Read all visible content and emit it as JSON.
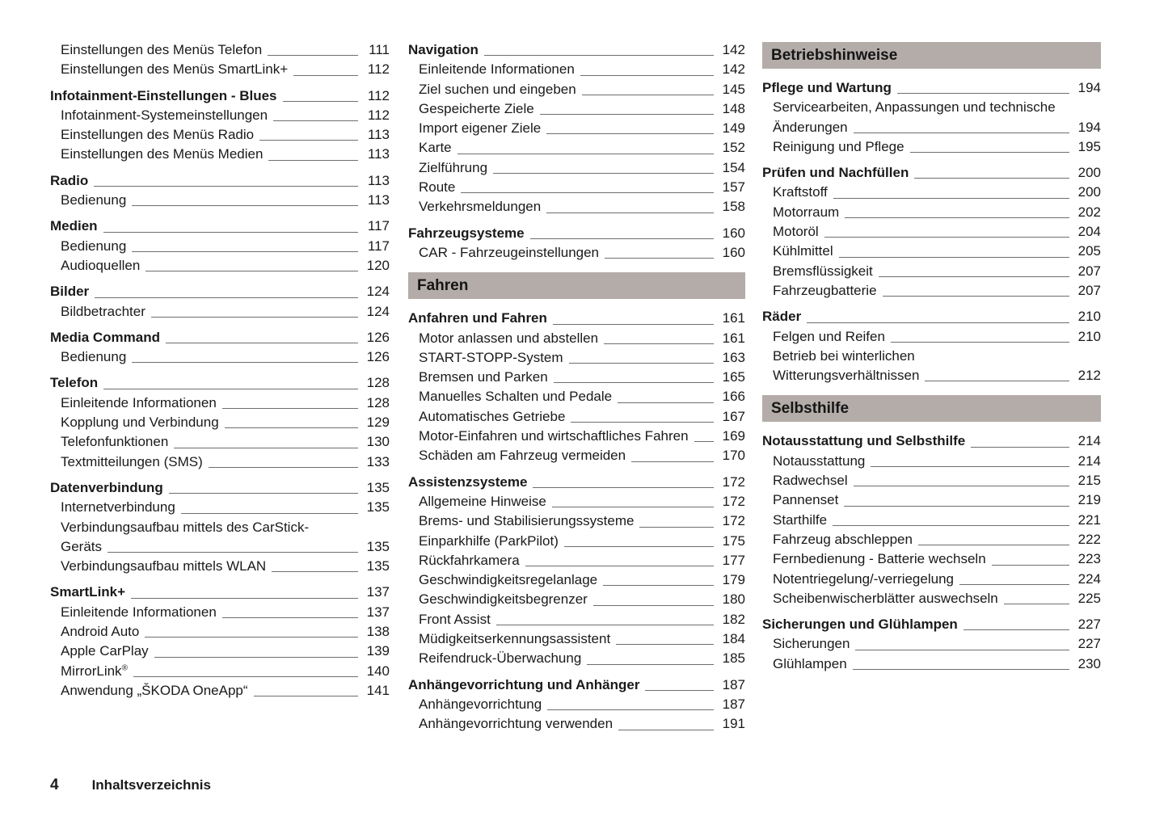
{
  "page": {
    "number": "4",
    "footer_label": "Inhaltsverzeichnis"
  },
  "colors": {
    "section_bar_bg": "#b3aca8",
    "text": "#1a1a1a",
    "leader_line": "#6e6e6e"
  },
  "columns": [
    {
      "blocks": [
        {
          "type": "group",
          "rows": [
            {
              "text": "Einstellungen des Menüs Telefon",
              "page": "111",
              "indent": true
            },
            {
              "text": "Einstellungen des Menüs SmartLink+",
              "page": "112",
              "indent": true
            }
          ]
        },
        {
          "type": "group",
          "rows": [
            {
              "text": "Infotainment-Einstellungen - Blues",
              "page": "112",
              "bold": true
            },
            {
              "text": "Infotainment-Systemeinstellungen",
              "page": "112",
              "indent": true
            },
            {
              "text": "Einstellungen des Menüs Radio",
              "page": "113",
              "indent": true
            },
            {
              "text": "Einstellungen des Menüs Medien",
              "page": "113",
              "indent": true
            }
          ]
        },
        {
          "type": "group",
          "rows": [
            {
              "text": "Radio",
              "page": "113",
              "bold": true
            },
            {
              "text": "Bedienung",
              "page": "113",
              "indent": true
            }
          ]
        },
        {
          "type": "group",
          "rows": [
            {
              "text": "Medien",
              "page": "117",
              "bold": true
            },
            {
              "text": "Bedienung",
              "page": "117",
              "indent": true
            },
            {
              "text": "Audioquellen",
              "page": "120",
              "indent": true
            }
          ]
        },
        {
          "type": "group",
          "rows": [
            {
              "text": "Bilder",
              "page": "124",
              "bold": true
            },
            {
              "text": "Bildbetrachter",
              "page": "124",
              "indent": true
            }
          ]
        },
        {
          "type": "group",
          "rows": [
            {
              "text": "Media Command",
              "page": "126",
              "bold": true
            },
            {
              "text": "Bedienung",
              "page": "126",
              "indent": true
            }
          ]
        },
        {
          "type": "group",
          "rows": [
            {
              "text": "Telefon",
              "page": "128",
              "bold": true
            },
            {
              "text": "Einleitende Informationen",
              "page": "128",
              "indent": true
            },
            {
              "text": "Kopplung und Verbindung",
              "page": "129",
              "indent": true
            },
            {
              "text": "Telefonfunktionen",
              "page": "130",
              "indent": true
            },
            {
              "text": "Textmitteilungen (SMS)",
              "page": "133",
              "indent": true
            }
          ]
        },
        {
          "type": "group",
          "rows": [
            {
              "text": "Datenverbindung",
              "page": "135",
              "bold": true
            },
            {
              "text": "Internetverbindung",
              "page": "135",
              "indent": true
            },
            {
              "text": "Verbindungsaufbau mittels des CarStick-",
              "page": null,
              "indent": true
            },
            {
              "text": "Geräts",
              "page": "135",
              "indent": true
            },
            {
              "text": "Verbindungsaufbau mittels WLAN",
              "page": "135",
              "indent": true
            }
          ]
        },
        {
          "type": "group",
          "rows": [
            {
              "text": "SmartLink+",
              "page": "137",
              "bold": true
            },
            {
              "text": "Einleitende Informationen",
              "page": "137",
              "indent": true
            },
            {
              "text": "Android Auto",
              "page": "138",
              "indent": true
            },
            {
              "text": "Apple CarPlay",
              "page": "139",
              "indent": true
            },
            {
              "text": "MirrorLink",
              "sup": "®",
              "page": "140",
              "indent": true
            },
            {
              "text": "Anwendung „ŠKODA OneApp“",
              "page": "141",
              "indent": true
            }
          ]
        }
      ]
    },
    {
      "blocks": [
        {
          "type": "group",
          "rows": [
            {
              "text": "Navigation",
              "page": "142",
              "bold": true
            },
            {
              "text": "Einleitende Informationen",
              "page": "142",
              "indent": true
            },
            {
              "text": "Ziel suchen und eingeben",
              "page": "145",
              "indent": true
            },
            {
              "text": "Gespeicherte Ziele",
              "page": "148",
              "indent": true
            },
            {
              "text": "Import eigener Ziele",
              "page": "149",
              "indent": true
            },
            {
              "text": "Karte",
              "page": "152",
              "indent": true
            },
            {
              "text": "Zielführung",
              "page": "154",
              "indent": true
            },
            {
              "text": "Route",
              "page": "157",
              "indent": true
            },
            {
              "text": "Verkehrsmeldungen",
              "page": "158",
              "indent": true
            }
          ]
        },
        {
          "type": "group",
          "rows": [
            {
              "text": "Fahrzeugsysteme",
              "page": "160",
              "bold": true
            },
            {
              "text": "CAR - Fahrzeugeinstellungen",
              "page": "160",
              "indent": true
            }
          ]
        },
        {
          "type": "header",
          "label": "Fahren"
        },
        {
          "type": "group",
          "rows": [
            {
              "text": "Anfahren und Fahren",
              "page": "161",
              "bold": true
            },
            {
              "text": "Motor anlassen und abstellen",
              "page": "161",
              "indent": true
            },
            {
              "text": "START-STOPP-System",
              "page": "163",
              "indent": true
            },
            {
              "text": "Bremsen und Parken",
              "page": "165",
              "indent": true
            },
            {
              "text": "Manuelles Schalten und Pedale",
              "page": "166",
              "indent": true
            },
            {
              "text": "Automatisches Getriebe",
              "page": "167",
              "indent": true
            },
            {
              "text": "Motor-Einfahren und wirtschaftliches Fahren",
              "page": "169",
              "indent": true
            },
            {
              "text": "Schäden am Fahrzeug vermeiden",
              "page": "170",
              "indent": true
            }
          ]
        },
        {
          "type": "group",
          "rows": [
            {
              "text": "Assistenzsysteme",
              "page": "172",
              "bold": true
            },
            {
              "text": "Allgemeine Hinweise",
              "page": "172",
              "indent": true
            },
            {
              "text": "Brems- und Stabilisierungssysteme",
              "page": "172",
              "indent": true
            },
            {
              "text": "Einparkhilfe (ParkPilot)",
              "page": "175",
              "indent": true
            },
            {
              "text": "Rückfahrkamera",
              "page": "177",
              "indent": true
            },
            {
              "text": "Geschwindigkeitsregelanlage",
              "page": "179",
              "indent": true
            },
            {
              "text": "Geschwindigkeitsbegrenzer",
              "page": "180",
              "indent": true
            },
            {
              "text": "Front Assist",
              "page": "182",
              "indent": true
            },
            {
              "text": "Müdigkeitserkennungsassistent",
              "page": "184",
              "indent": true
            },
            {
              "text": "Reifendruck-Überwachung",
              "page": "185",
              "indent": true
            }
          ]
        },
        {
          "type": "group",
          "rows": [
            {
              "text": "Anhängevorrichtung und Anhänger",
              "page": "187",
              "bold": true
            },
            {
              "text": "Anhängevorrichtung",
              "page": "187",
              "indent": true
            },
            {
              "text": "Anhängevorrichtung verwenden",
              "page": "191",
              "indent": true
            }
          ]
        }
      ]
    },
    {
      "blocks": [
        {
          "type": "header",
          "label": "Betriebshinweise"
        },
        {
          "type": "group",
          "rows": [
            {
              "text": "Pflege und Wartung",
              "page": "194",
              "bold": true
            },
            {
              "text": "Servicearbeiten, Anpassungen und technische",
              "page": null,
              "indent": true
            },
            {
              "text": "Änderungen",
              "page": "194",
              "indent": true
            },
            {
              "text": "Reinigung und Pflege",
              "page": "195",
              "indent": true
            }
          ]
        },
        {
          "type": "group",
          "rows": [
            {
              "text": "Prüfen und Nachfüllen",
              "page": "200",
              "bold": true
            },
            {
              "text": "Kraftstoff",
              "page": "200",
              "indent": true
            },
            {
              "text": "Motorraum",
              "page": "202",
              "indent": true
            },
            {
              "text": "Motoröl",
              "page": "204",
              "indent": true
            },
            {
              "text": "Kühlmittel",
              "page": "205",
              "indent": true
            },
            {
              "text": "Bremsflüssigkeit",
              "page": "207",
              "indent": true
            },
            {
              "text": "Fahrzeugbatterie",
              "page": "207",
              "indent": true
            }
          ]
        },
        {
          "type": "group",
          "rows": [
            {
              "text": "Räder",
              "page": "210",
              "bold": true
            },
            {
              "text": "Felgen und Reifen",
              "page": "210",
              "indent": true
            },
            {
              "text": "Betrieb bei winterlichen",
              "page": null,
              "indent": true
            },
            {
              "text": "Witterungsverhältnissen",
              "page": "212",
              "indent": true
            }
          ]
        },
        {
          "type": "header",
          "label": "Selbsthilfe"
        },
        {
          "type": "group",
          "rows": [
            {
              "text": "Notausstattung und Selbsthilfe",
              "page": "214",
              "bold": true
            },
            {
              "text": "Notausstattung",
              "page": "214",
              "indent": true
            },
            {
              "text": "Radwechsel",
              "page": "215",
              "indent": true
            },
            {
              "text": "Pannenset",
              "page": "219",
              "indent": true
            },
            {
              "text": "Starthilfe",
              "page": "221",
              "indent": true
            },
            {
              "text": "Fahrzeug abschleppen",
              "page": "222",
              "indent": true
            },
            {
              "text": "Fernbedienung - Batterie wechseln",
              "page": "223",
              "indent": true
            },
            {
              "text": "Notentriegelung/-verriegelung",
              "page": "224",
              "indent": true
            },
            {
              "text": "Scheibenwischerblätter auswechseln",
              "page": "225",
              "indent": true
            }
          ]
        },
        {
          "type": "group",
          "rows": [
            {
              "text": "Sicherungen und Glühlampen",
              "page": "227",
              "bold": true
            },
            {
              "text": "Sicherungen",
              "page": "227",
              "indent": true
            },
            {
              "text": "Glühlampen",
              "page": "230",
              "indent": true
            }
          ]
        }
      ]
    }
  ]
}
